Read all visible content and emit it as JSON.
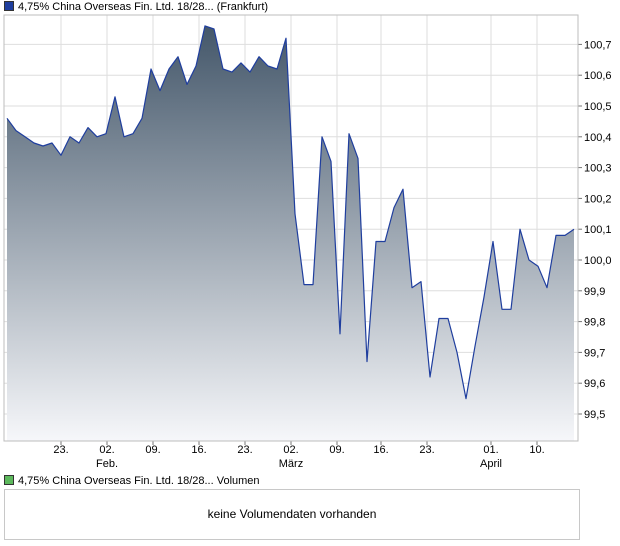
{
  "legend": {
    "price_label": "4,75% China Overseas Fin. Ltd. 18/28... (Frankfurt)",
    "price_color": "#1f3e9e",
    "volume_label": "4,75% China Overseas Fin. Ltd. 18/28... Volumen",
    "volume_color": "#5cb85c"
  },
  "volume_panel": {
    "message": "keine Volumendaten vorhanden"
  },
  "chart_data": {
    "type": "area",
    "title": "",
    "xlabel": "",
    "ylabel": "",
    "ylim": [
      99.42,
      100.83
    ],
    "grid": true,
    "line_color": "#1f3e9e",
    "fill_top_color": "#44576a",
    "fill_bottom_color": "#f6f7fa",
    "y_ticks": [
      "99,5",
      "99,6",
      "99,7",
      "99,8",
      "99,9",
      "100,0",
      "100,1",
      "100,2",
      "100,3",
      "100,4",
      "100,5",
      "100,6",
      "100,7"
    ],
    "x_ticks": [
      {
        "day": "23.",
        "month": ""
      },
      {
        "day": "02.",
        "month": "Feb."
      },
      {
        "day": "09.",
        "month": ""
      },
      {
        "day": "16.",
        "month": ""
      },
      {
        "day": "23.",
        "month": ""
      },
      {
        "day": "02.",
        "month": "März"
      },
      {
        "day": "09.",
        "month": ""
      },
      {
        "day": "16.",
        "month": ""
      },
      {
        "day": "23.",
        "month": ""
      },
      {
        "day": "01.",
        "month": "April"
      },
      {
        "day": "10.",
        "month": ""
      }
    ],
    "series": [
      {
        "values": [
          100.46,
          100.42,
          100.4,
          100.38,
          100.37,
          100.38,
          100.34,
          100.4,
          100.38,
          100.43,
          100.4,
          100.41,
          100.53,
          100.4,
          100.41,
          100.46,
          100.62,
          100.55,
          100.62,
          100.66,
          100.57,
          100.63,
          100.76,
          100.75,
          100.62,
          100.61,
          100.64,
          100.61,
          100.66,
          100.63,
          100.62,
          100.72,
          100.15,
          99.92,
          99.92,
          100.4,
          100.32,
          99.76,
          100.41,
          100.33,
          99.67,
          100.06,
          100.06,
          100.17,
          100.23,
          99.91,
          99.93,
          99.62,
          99.81,
          99.81,
          99.7,
          99.55,
          99.72,
          99.88,
          100.06,
          99.84,
          99.84,
          100.1,
          100.0,
          99.98,
          99.91,
          100.08,
          100.08,
          100.1
        ]
      }
    ]
  }
}
